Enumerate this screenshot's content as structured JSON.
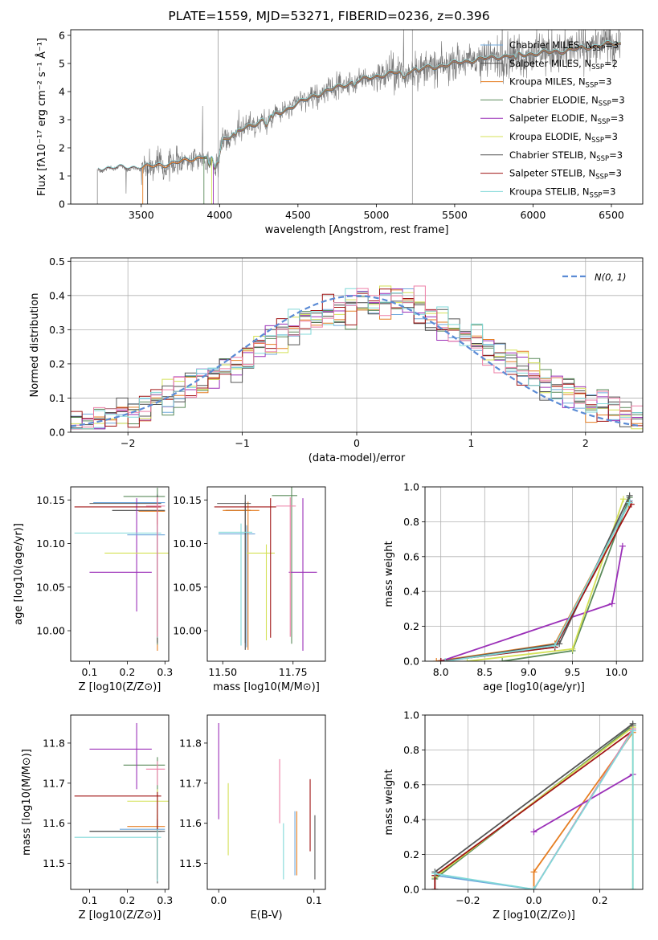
{
  "title": "PLATE=1559, MJD=53271, FIBERID=0236, z=0.396",
  "colors": {
    "chabrier_miles": "#6fa8dc",
    "salpeter_miles": "#4a4a4a",
    "kroupa_miles": "#e67e22",
    "chabrier_elodie": "#5a8a5a",
    "salpeter_elodie": "#9b30b8",
    "kroupa_elodie": "#d4e157",
    "chabrier_stelib": "#555555",
    "salpeter_stelib": "#a01414",
    "kroupa_stelib": "#80d8d8",
    "data": "#777777",
    "normal": "#5b8bd5",
    "extra_pink": "#ee7fa7"
  },
  "chart_data": [
    {
      "id": "spectrum",
      "type": "line",
      "xlabel": "wavelength [Angstrom, rest frame]",
      "ylabel": "Flux [fλ 10⁻¹⁷ erg cm⁻² s⁻¹ Å⁻¹]",
      "xlim": [
        3050,
        6700
      ],
      "ylim": [
        0,
        6.2
      ],
      "xticks": [
        "3500",
        "4000",
        "4500",
        "5000",
        "5500",
        "6000",
        "6500"
      ],
      "yticks": [
        "0",
        "1",
        "2",
        "3",
        "4",
        "5",
        "6"
      ],
      "legend_position": "upper-right",
      "legend": [
        {
          "label": "Chabrier MILES, N",
          "sub": "SSP",
          "suffix": "=3",
          "color_key": "chabrier_miles"
        },
        {
          "label": "Salpeter MILES, N",
          "sub": "SSP",
          "suffix": "=2",
          "color_key": "salpeter_miles"
        },
        {
          "label": "Kroupa MILES, N",
          "sub": "SSP",
          "suffix": "=3",
          "color_key": "kroupa_miles"
        },
        {
          "label": "Chabrier ELODIE, N",
          "sub": "SSP",
          "suffix": "=3",
          "color_key": "chabrier_elodie"
        },
        {
          "label": "Salpeter ELODIE, N",
          "sub": "SSP",
          "suffix": "=3",
          "color_key": "salpeter_elodie"
        },
        {
          "label": "Kroupa ELODIE, N",
          "sub": "SSP",
          "suffix": "=3",
          "color_key": "kroupa_elodie"
        },
        {
          "label": "Chabrier STELIB, N",
          "sub": "SSP",
          "suffix": "=3",
          "color_key": "chabrier_stelib"
        },
        {
          "label": "Salpeter STELIB, N",
          "sub": "SSP",
          "suffix": "=3",
          "color_key": "salpeter_stelib"
        },
        {
          "label": "Kroupa STELIB, N",
          "sub": "SSP",
          "suffix": "=3",
          "color_key": "kroupa_stelib"
        }
      ],
      "continuum": [
        [
          3220,
          1.25
        ],
        [
          3500,
          1.3
        ],
        [
          3700,
          1.45
        ],
        [
          3900,
          1.7
        ],
        [
          3990,
          1.5
        ],
        [
          4020,
          2.3
        ],
        [
          4200,
          2.8
        ],
        [
          4400,
          3.3
        ],
        [
          4600,
          3.85
        ],
        [
          4800,
          4.25
        ],
        [
          5000,
          4.55
        ],
        [
          5200,
          4.75
        ],
        [
          5400,
          4.9
        ],
        [
          5600,
          5.1
        ],
        [
          5800,
          5.25
        ],
        [
          6000,
          5.35
        ],
        [
          6200,
          5.45
        ],
        [
          6500,
          5.7
        ]
      ]
    },
    {
      "id": "residuals",
      "type": "histogram",
      "xlabel": "(data-model)/error",
      "ylabel": "Normed distribution",
      "xlim": [
        -2.5,
        2.5
      ],
      "ylim": [
        0,
        0.51
      ],
      "xticks": [
        "−2",
        "−1",
        "0",
        "1",
        "2"
      ],
      "yticks": [
        "0.0",
        "0.1",
        "0.2",
        "0.3",
        "0.4",
        "0.5"
      ],
      "normal_label": "N(0, 1)",
      "bin_width": 0.1
    },
    {
      "id": "age_vs_Z",
      "type": "scatter",
      "xlabel": "Z [log10(Z/Z⊙)]",
      "ylabel": "age  [log10(age/yr)]",
      "xlim": [
        0.05,
        0.31
      ],
      "ylim": [
        9.965,
        10.165
      ],
      "xticks": [
        "0.1",
        "0.2",
        "0.3"
      ],
      "yticks": [
        "10.00",
        "10.05",
        "10.10",
        "10.15"
      ],
      "points": [
        {
          "x": 0.28,
          "y": 10.147,
          "xerr": [
            0.17,
            0.02
          ],
          "yerr": [
            0.16,
            0.01
          ],
          "color_key": "chabrier_miles"
        },
        {
          "x": 0.28,
          "y": 10.138,
          "xerr": [
            0.12,
            0.02
          ],
          "yerr": [
            0.14,
            0.01
          ],
          "color_key": "salpeter_miles"
        },
        {
          "x": 0.28,
          "y": 10.137,
          "xerr": [
            0.05,
            0.02
          ],
          "yerr": [
            0.16,
            0.01
          ],
          "color_key": "kroupa_miles"
        },
        {
          "x": 0.28,
          "y": 10.154,
          "xerr": [
            0.09,
            0.02
          ],
          "yerr": [
            0.17,
            0.01
          ],
          "color_key": "chabrier_elodie"
        },
        {
          "x": 0.225,
          "y": 10.067,
          "xerr": [
            0.125,
            0.04
          ],
          "yerr": [
            0.045,
            0.085
          ],
          "color_key": "salpeter_elodie"
        },
        {
          "x": 0.28,
          "y": 10.089,
          "xerr": [
            0.14,
            0.03
          ],
          "yerr": [
            0.1,
            0.01
          ],
          "color_key": "kroupa_elodie"
        },
        {
          "x": 0.28,
          "y": 10.146,
          "xerr": [
            0.18,
            0.01
          ],
          "yerr": [
            0.16,
            0.01
          ],
          "color_key": "chabrier_stelib"
        },
        {
          "x": 0.28,
          "y": 10.142,
          "xerr": [
            0.22,
            0.01
          ],
          "yerr": [
            0.15,
            0.01
          ],
          "color_key": "salpeter_stelib"
        },
        {
          "x": 0.28,
          "y": 10.112,
          "xerr": [
            0.22,
            0.01
          ],
          "yerr": [
            0.12,
            0.01
          ],
          "color_key": "kroupa_stelib"
        },
        {
          "x": 0.28,
          "y": 10.11,
          "xerr": [
            0.08,
            0.02
          ],
          "yerr": [
            0.11,
            0.01
          ],
          "color_key": "chabrier_miles"
        },
        {
          "x": 0.28,
          "y": 10.143,
          "xerr": [
            0.03,
            0.02
          ],
          "yerr": [
            0.15,
            0.01
          ],
          "color_key": "extra_pink"
        }
      ]
    },
    {
      "id": "age_vs_mass",
      "type": "scatter",
      "xlabel": "mass [log10(M/M⊙)]",
      "ylabel": "",
      "xlim": [
        11.445,
        11.865
      ],
      "ylim": [
        9.965,
        10.165
      ],
      "xticks": [
        "11.50",
        "11.75"
      ],
      "yticks": [
        "10.00",
        "10.05",
        "10.10",
        "10.15"
      ],
      "points": [
        {
          "x": 11.585,
          "y": 10.111,
          "xerr": [
            0.1,
            0.03
          ],
          "yerr": [
            0.13,
            0.01
          ],
          "color_key": "chabrier_miles"
        },
        {
          "x": 11.58,
          "y": 10.138,
          "xerr": [
            0.07,
            0.02
          ],
          "yerr": [
            0.16,
            0.01
          ],
          "color_key": "salpeter_miles"
        },
        {
          "x": 11.59,
          "y": 10.138,
          "xerr": [
            0.09,
            0.04
          ],
          "yerr": [
            0.16,
            0.01
          ],
          "color_key": "kroupa_miles"
        },
        {
          "x": 11.745,
          "y": 10.155,
          "xerr": [
            0.07,
            0.02
          ],
          "yerr": [
            0.17,
            0.01
          ],
          "color_key": "chabrier_elodie"
        },
        {
          "x": 11.785,
          "y": 10.067,
          "xerr": [
            0.05,
            0.05
          ],
          "yerr": [
            0.09,
            0.085
          ],
          "color_key": "salpeter_elodie"
        },
        {
          "x": 11.655,
          "y": 10.089,
          "xerr": [
            0.07,
            0.03
          ],
          "yerr": [
            0.1,
            0.01
          ],
          "color_key": "kroupa_elodie"
        },
        {
          "x": 11.58,
          "y": 10.146,
          "xerr": [
            0.1,
            0.02
          ],
          "yerr": [
            0.16,
            0.01
          ],
          "color_key": "chabrier_stelib"
        },
        {
          "x": 11.67,
          "y": 10.142,
          "xerr": [
            0.2,
            0.02
          ],
          "yerr": [
            0.15,
            0.01
          ],
          "color_key": "salpeter_stelib"
        },
        {
          "x": 11.565,
          "y": 10.113,
          "xerr": [
            0.08,
            0.04
          ],
          "yerr": [
            0.13,
            0.01
          ],
          "color_key": "kroupa_stelib"
        },
        {
          "x": 11.74,
          "y": 10.143,
          "xerr": [
            0.05,
            0.02
          ],
          "yerr": [
            0.15,
            0.01
          ],
          "color_key": "extra_pink"
        }
      ]
    },
    {
      "id": "mw_vs_age",
      "type": "line",
      "xlabel": "age  [log10(age/yr)]",
      "ylabel": "mass weight",
      "xlim": [
        7.82,
        10.3
      ],
      "ylim": [
        0,
        1.0
      ],
      "xticks": [
        "8.0",
        "8.5",
        "9.0",
        "9.5",
        "10.0"
      ],
      "yticks": [
        "0.0",
        "0.2",
        "0.4",
        "0.6",
        "0.8",
        "1.0"
      ],
      "series": [
        {
          "color_key": "chabrier_miles",
          "x": [
            8.0,
            9.3,
            10.15
          ],
          "y": [
            0.0,
            0.08,
            0.92
          ]
        },
        {
          "color_key": "salpeter_miles",
          "x": [
            9.3,
            10.15
          ],
          "y": [
            0.09,
            0.91
          ]
        },
        {
          "color_key": "kroupa_miles",
          "x": [
            7.95,
            9.3,
            10.14
          ],
          "y": [
            0.0,
            0.1,
            0.9
          ]
        },
        {
          "color_key": "chabrier_elodie",
          "x": [
            8.7,
            9.5,
            10.15
          ],
          "y": [
            0.0,
            0.06,
            0.94
          ]
        },
        {
          "color_key": "salpeter_elodie",
          "x": [
            8.0,
            9.95,
            10.07
          ],
          "y": [
            0.0,
            0.33,
            0.66
          ]
        },
        {
          "color_key": "kroupa_elodie",
          "x": [
            8.3,
            9.5,
            10.08
          ],
          "y": [
            0.0,
            0.07,
            0.93
          ]
        },
        {
          "color_key": "chabrier_stelib",
          "x": [
            8.0,
            9.35,
            10.15
          ],
          "y": [
            0.0,
            0.1,
            0.95
          ]
        },
        {
          "color_key": "salpeter_stelib",
          "x": [
            8.0,
            9.3,
            10.17
          ],
          "y": [
            0.0,
            0.08,
            0.9
          ]
        },
        {
          "color_key": "kroupa_stelib",
          "x": [
            8.05,
            9.3,
            10.15
          ],
          "y": [
            0.0,
            0.09,
            0.91
          ]
        }
      ]
    },
    {
      "id": "mass_vs_Z",
      "type": "scatter",
      "xlabel": "Z [log10(Z/Z⊙)]",
      "ylabel": "mass [log10(M/M⊙)]",
      "xlim": [
        0.05,
        0.31
      ],
      "ylim": [
        11.435,
        11.87
      ],
      "xticks": [
        "0.1",
        "0.2",
        "0.3"
      ],
      "yticks": [
        "11.5",
        "11.6",
        "11.7",
        "11.8"
      ],
      "points": [
        {
          "x": 0.28,
          "y": 11.585,
          "xerr": [
            0.1,
            0.02
          ],
          "yerr": [
            0.12,
            0.02
          ],
          "color_key": "chabrier_miles"
        },
        {
          "x": 0.28,
          "y": 11.58,
          "xerr": [
            0.18,
            0.02
          ],
          "yerr": [
            0.12,
            0.02
          ],
          "color_key": "salpeter_miles"
        },
        {
          "x": 0.28,
          "y": 11.592,
          "xerr": [
            0.08,
            0.02
          ],
          "yerr": [
            0.13,
            0.03
          ],
          "color_key": "kroupa_miles"
        },
        {
          "x": 0.28,
          "y": 11.745,
          "xerr": [
            0.09,
            0.02
          ],
          "yerr": [
            0.29,
            0.02
          ],
          "color_key": "chabrier_elodie"
        },
        {
          "x": 0.225,
          "y": 11.785,
          "xerr": [
            0.125,
            0.04
          ],
          "yerr": [
            0.1,
            0.065
          ],
          "color_key": "salpeter_elodie"
        },
        {
          "x": 0.28,
          "y": 11.655,
          "xerr": [
            0.08,
            0.03
          ],
          "yerr": [
            0.18,
            0.03
          ],
          "color_key": "kroupa_elodie"
        },
        {
          "x": 0.28,
          "y": 11.58,
          "xerr": [
            0.18,
            0.01
          ],
          "yerr": [
            0.13,
            0.03
          ],
          "color_key": "chabrier_stelib"
        },
        {
          "x": 0.28,
          "y": 11.668,
          "xerr": [
            0.22,
            0.01
          ],
          "yerr": [
            0.21,
            0.01
          ],
          "color_key": "salpeter_stelib"
        },
        {
          "x": 0.28,
          "y": 11.565,
          "xerr": [
            0.22,
            0.01
          ],
          "yerr": [
            0.11,
            0.02
          ],
          "color_key": "kroupa_stelib"
        },
        {
          "x": 0.28,
          "y": 11.735,
          "xerr": [
            0.03,
            0.02
          ],
          "yerr": [
            0.04,
            0.02
          ],
          "color_key": "extra_pink"
        }
      ]
    },
    {
      "id": "mass_vs_ebv",
      "type": "scatter",
      "xlabel": "E(B-V)",
      "ylabel": "",
      "xlim": [
        -0.012,
        0.112
      ],
      "ylim": [
        11.435,
        11.87
      ],
      "xticks": [
        "0.0",
        "0.1"
      ],
      "yticks": [
        "11.5",
        "11.6",
        "11.7",
        "11.8"
      ],
      "points": [
        {
          "x": 0.0,
          "y": 11.72,
          "yerr": [
            0.11,
            0.13
          ],
          "color_key": "salpeter_elodie"
        },
        {
          "x": 0.01,
          "y": 11.61,
          "yerr": [
            0.09,
            0.09
          ],
          "color_key": "kroupa_elodie"
        },
        {
          "x": 0.064,
          "y": 11.68,
          "yerr": [
            0.08,
            0.08
          ],
          "color_key": "extra_pink"
        },
        {
          "x": 0.068,
          "y": 11.53,
          "yerr": [
            0.07,
            0.07
          ],
          "color_key": "kroupa_stelib"
        },
        {
          "x": 0.08,
          "y": 11.55,
          "yerr": [
            0.08,
            0.08
          ],
          "color_key": "chabrier_miles"
        },
        {
          "x": 0.082,
          "y": 11.56,
          "yerr": [
            0.09,
            0.07
          ],
          "color_key": "kroupa_miles"
        },
        {
          "x": 0.096,
          "y": 11.62,
          "yerr": [
            0.09,
            0.09
          ],
          "color_key": "salpeter_stelib"
        },
        {
          "x": 0.101,
          "y": 11.55,
          "yerr": [
            0.09,
            0.07
          ],
          "color_key": "chabrier_stelib"
        }
      ]
    },
    {
      "id": "mw_vs_Z",
      "type": "line",
      "xlabel": "Z [log10(Z/Z⊙)]",
      "ylabel": "mass weight",
      "xlim": [
        -0.33,
        0.33
      ],
      "ylim": [
        0,
        1.0
      ],
      "xticks": [
        "−0.2",
        "0.0",
        "0.2"
      ],
      "yticks": [
        "0.0",
        "0.2",
        "0.4",
        "0.6",
        "0.8",
        "1.0"
      ],
      "series": [
        {
          "color_key": "chabrier_miles",
          "x": [
            -0.3,
            0.0,
            0.3,
            0.3
          ],
          "y": [
            0.08,
            0.0,
            0.92,
            0.92
          ]
        },
        {
          "color_key": "kroupa_miles",
          "x": [
            0.0,
            0.0,
            0.3
          ],
          "y": [
            0.0,
            0.1,
            0.9
          ]
        },
        {
          "color_key": "chabrier_elodie",
          "x": [
            -0.3,
            0.3
          ],
          "y": [
            0.06,
            0.94
          ]
        },
        {
          "color_key": "salpeter_elodie",
          "x": [
            0.0,
            0.3
          ],
          "y": [
            0.33,
            0.66
          ]
        },
        {
          "color_key": "kroupa_elodie",
          "x": [
            -0.3,
            0.3,
            0.3
          ],
          "y": [
            0.07,
            0.93,
            0.0
          ]
        },
        {
          "color_key": "chabrier_stelib",
          "x": [
            -0.3,
            -0.3,
            0.3
          ],
          "y": [
            0.0,
            0.1,
            0.95
          ]
        },
        {
          "color_key": "salpeter_stelib",
          "x": [
            -0.3,
            -0.3,
            0.3
          ],
          "y": [
            0.0,
            0.08,
            0.91
          ]
        },
        {
          "color_key": "extra_pink",
          "x": [
            0.0,
            0.3
          ],
          "y": [
            0.0,
            0.92
          ]
        },
        {
          "color_key": "kroupa_stelib",
          "x": [
            -0.3,
            0.0,
            0.3,
            0.3
          ],
          "y": [
            0.09,
            0.0,
            0.91,
            0.0
          ]
        }
      ]
    }
  ]
}
